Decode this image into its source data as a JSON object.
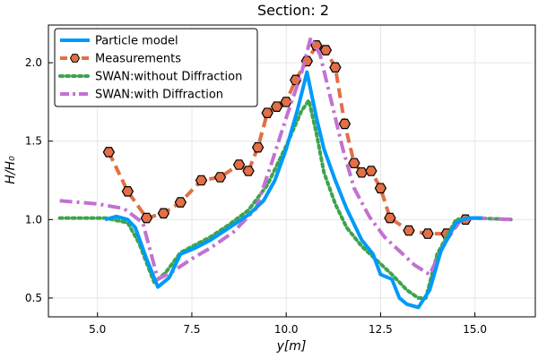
{
  "chart_data": {
    "type": "line",
    "title": "Section: 2",
    "xlabel": "y[m]",
    "ylabel": "H/H₀",
    "xlim": [
      3.7,
      16.6
    ],
    "ylim": [
      0.38,
      2.24
    ],
    "xticks": [
      5.0,
      7.5,
      10.0,
      12.5,
      15.0
    ],
    "xtick_labels": [
      "5.0",
      "7.5",
      "10.0",
      "12.5",
      "15.0"
    ],
    "yticks": [
      0.5,
      1.0,
      1.5,
      2.0
    ],
    "ytick_labels": [
      "0.5",
      "1.0",
      "1.5",
      "2.0"
    ],
    "grid": true,
    "legend_position": "top-left",
    "series": [
      {
        "name": "Particle model",
        "color": "#009af9",
        "style": "solid",
        "points": [
          [
            5.2,
            1.0
          ],
          [
            5.5,
            1.02
          ],
          [
            5.8,
            1.0
          ],
          [
            6.0,
            0.95
          ],
          [
            6.3,
            0.75
          ],
          [
            6.6,
            0.57
          ],
          [
            6.9,
            0.63
          ],
          [
            7.2,
            0.78
          ],
          [
            7.6,
            0.82
          ],
          [
            8.0,
            0.87
          ],
          [
            8.5,
            0.95
          ],
          [
            9.0,
            1.03
          ],
          [
            9.4,
            1.12
          ],
          [
            9.7,
            1.25
          ],
          [
            10.0,
            1.45
          ],
          [
            10.3,
            1.7
          ],
          [
            10.55,
            1.94
          ],
          [
            10.8,
            1.65
          ],
          [
            11.0,
            1.45
          ],
          [
            11.3,
            1.25
          ],
          [
            11.6,
            1.07
          ],
          [
            12.0,
            0.87
          ],
          [
            12.3,
            0.78
          ],
          [
            12.5,
            0.65
          ],
          [
            12.8,
            0.62
          ],
          [
            13.0,
            0.5
          ],
          [
            13.2,
            0.46
          ],
          [
            13.5,
            0.44
          ],
          [
            13.8,
            0.55
          ],
          [
            14.1,
            0.8
          ],
          [
            14.5,
            0.98
          ],
          [
            14.8,
            1.01
          ],
          [
            15.2,
            1.01
          ]
        ]
      },
      {
        "name": "Measurements",
        "color": "#e26f46",
        "style": "dashed",
        "marker": "hexagon",
        "points": [
          [
            5.3,
            1.43
          ],
          [
            5.8,
            1.18
          ],
          [
            6.3,
            1.01
          ],
          [
            6.75,
            1.04
          ],
          [
            7.2,
            1.11
          ],
          [
            7.75,
            1.25
          ],
          [
            8.25,
            1.27
          ],
          [
            8.75,
            1.35
          ],
          [
            9.0,
            1.31
          ],
          [
            9.25,
            1.46
          ],
          [
            9.5,
            1.68
          ],
          [
            9.75,
            1.72
          ],
          [
            10.0,
            1.75
          ],
          [
            10.25,
            1.89
          ],
          [
            10.55,
            2.01
          ],
          [
            10.8,
            2.11
          ],
          [
            11.05,
            2.08
          ],
          [
            11.3,
            1.97
          ],
          [
            11.55,
            1.61
          ],
          [
            11.8,
            1.36
          ],
          [
            12.0,
            1.3
          ],
          [
            12.25,
            1.31
          ],
          [
            12.5,
            1.2
          ],
          [
            12.75,
            1.01
          ],
          [
            13.25,
            0.93
          ],
          [
            13.75,
            0.91
          ],
          [
            14.25,
            0.91
          ],
          [
            14.75,
            1.0
          ]
        ]
      },
      {
        "name": "SWAN:without Diffraction",
        "color": "#3da44d",
        "style": "dotted",
        "points": [
          [
            4.0,
            1.01
          ],
          [
            5.2,
            1.01
          ],
          [
            5.8,
            0.98
          ],
          [
            6.1,
            0.85
          ],
          [
            6.5,
            0.6
          ],
          [
            6.8,
            0.66
          ],
          [
            7.2,
            0.79
          ],
          [
            7.6,
            0.84
          ],
          [
            8.0,
            0.89
          ],
          [
            8.5,
            0.97
          ],
          [
            9.0,
            1.06
          ],
          [
            9.5,
            1.22
          ],
          [
            10.0,
            1.47
          ],
          [
            10.4,
            1.69
          ],
          [
            10.6,
            1.76
          ],
          [
            10.8,
            1.55
          ],
          [
            11.0,
            1.3
          ],
          [
            11.3,
            1.1
          ],
          [
            11.6,
            0.95
          ],
          [
            12.0,
            0.83
          ],
          [
            12.4,
            0.74
          ],
          [
            12.8,
            0.65
          ],
          [
            13.2,
            0.55
          ],
          [
            13.5,
            0.5
          ],
          [
            13.7,
            0.5
          ],
          [
            14.0,
            0.78
          ],
          [
            14.5,
            1.0
          ],
          [
            15.0,
            1.01
          ],
          [
            16.0,
            1.0
          ]
        ]
      },
      {
        "name": "SWAN:with Diffraction",
        "color": "#c271d2",
        "style": "dashdot",
        "points": [
          [
            4.0,
            1.12
          ],
          [
            5.0,
            1.1
          ],
          [
            5.7,
            1.07
          ],
          [
            6.2,
            0.98
          ],
          [
            6.6,
            0.62
          ],
          [
            7.0,
            0.67
          ],
          [
            7.5,
            0.75
          ],
          [
            8.0,
            0.82
          ],
          [
            8.6,
            0.92
          ],
          [
            9.2,
            1.07
          ],
          [
            9.6,
            1.35
          ],
          [
            10.0,
            1.65
          ],
          [
            10.4,
            1.93
          ],
          [
            10.65,
            2.16
          ],
          [
            10.9,
            2.05
          ],
          [
            11.2,
            1.75
          ],
          [
            11.5,
            1.45
          ],
          [
            11.8,
            1.2
          ],
          [
            12.2,
            1.02
          ],
          [
            12.6,
            0.89
          ],
          [
            13.0,
            0.8
          ],
          [
            13.4,
            0.71
          ],
          [
            13.8,
            0.65
          ],
          [
            14.2,
            0.85
          ],
          [
            14.6,
            0.99
          ],
          [
            15.0,
            1.01
          ],
          [
            16.0,
            1.0
          ]
        ]
      }
    ]
  }
}
